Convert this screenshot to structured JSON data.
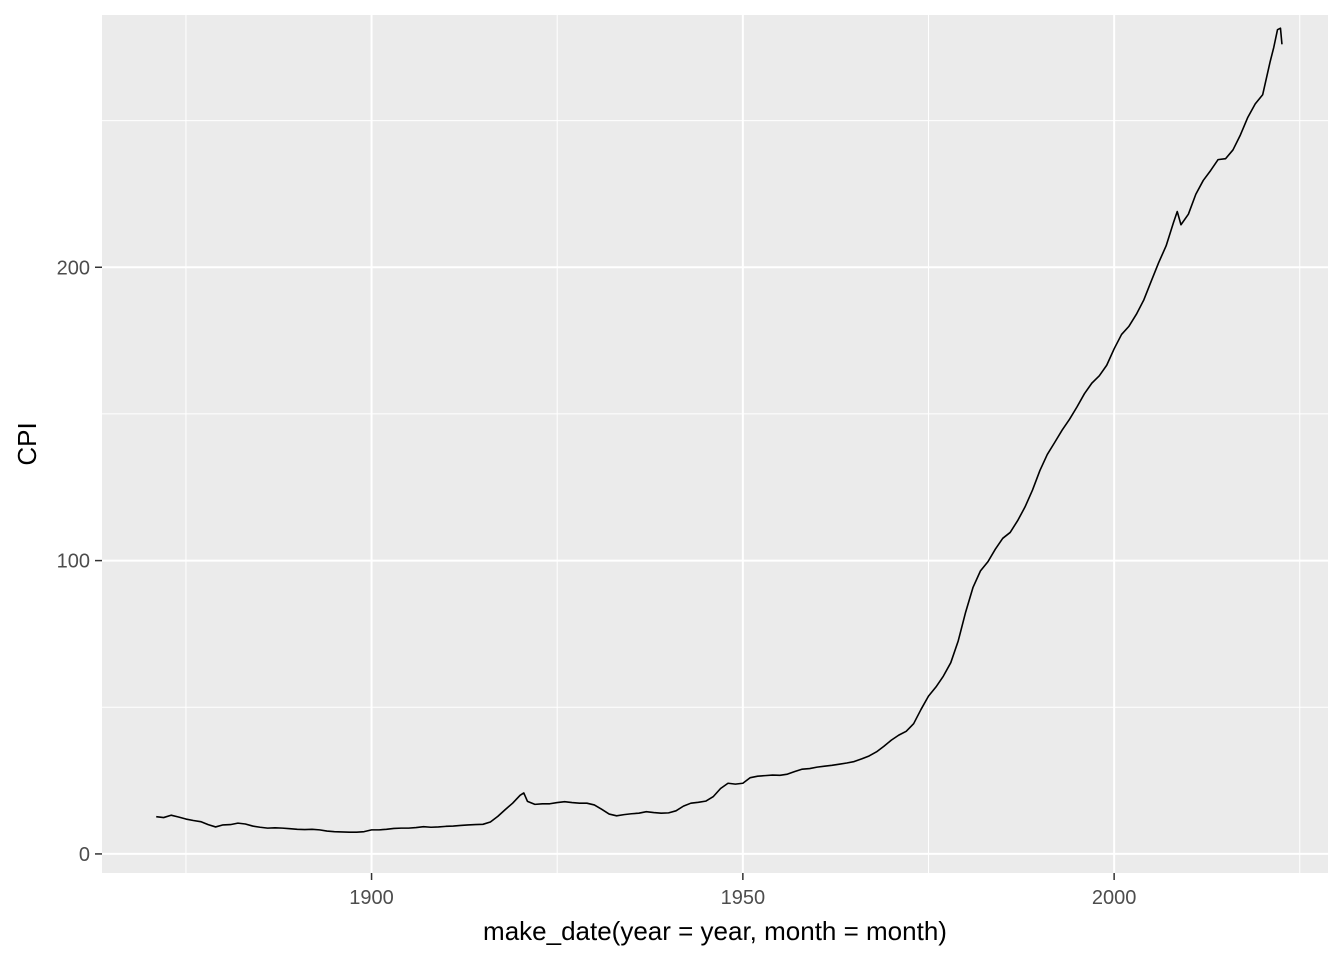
{
  "chart_data": {
    "type": "line",
    "title": "",
    "xlabel": "make_date(year = year, month = month)",
    "ylabel": "CPI",
    "x_unit": "year",
    "xlim": [
      1863.7,
      2028.8
    ],
    "ylim": [
      -6.5,
      286.0
    ],
    "x_ticks": [
      1900,
      1950,
      2000
    ],
    "x_tick_labels": [
      "1900",
      "1950",
      "2000"
    ],
    "x_minor_ticks": [
      1875,
      1925,
      1975,
      2025
    ],
    "y_ticks": [
      0,
      100,
      200
    ],
    "y_tick_labels": [
      "0",
      "100",
      "200"
    ],
    "y_minor_ticks": [
      50,
      150,
      250
    ],
    "grid": true,
    "legend": "none",
    "colors": {
      "panel": "#ebebeb",
      "grid": "#ffffff",
      "line": "#000000"
    },
    "series": [
      {
        "x": [
          1871.0,
          1872.0,
          1873.0,
          1874.0,
          1875.0,
          1876.0,
          1877.0,
          1878.0,
          1879.0,
          1880.0,
          1881.0,
          1882.0,
          1883.0,
          1884.0,
          1885.0,
          1886.0,
          1887.0,
          1888.0,
          1889.0,
          1890.0,
          1891.0,
          1892.0,
          1893.0,
          1894.0,
          1895.0,
          1896.0,
          1897.0,
          1898.0,
          1899.0,
          1900.0,
          1901.0,
          1902.0,
          1903.0,
          1904.0,
          1905.0,
          1906.0,
          1907.0,
          1908.0,
          1909.0,
          1910.0,
          1911.0,
          1912.0,
          1913.0,
          1914.0,
          1915.0,
          1916.0,
          1917.0,
          1918.0,
          1919.0,
          1920.0,
          1920.5,
          1921.0,
          1922.0,
          1923.0,
          1924.0,
          1925.0,
          1926.0,
          1927.0,
          1928.0,
          1929.0,
          1930.0,
          1931.0,
          1932.0,
          1933.0,
          1934.0,
          1935.0,
          1936.0,
          1937.0,
          1938.0,
          1939.0,
          1940.0,
          1941.0,
          1942.0,
          1943.0,
          1944.0,
          1945.0,
          1946.0,
          1947.0,
          1948.0,
          1949.0,
          1950.0,
          1951.0,
          1952.0,
          1953.0,
          1954.0,
          1955.0,
          1956.0,
          1957.0,
          1958.0,
          1959.0,
          1960.0,
          1961.0,
          1962.0,
          1963.0,
          1964.0,
          1965.0,
          1966.0,
          1967.0,
          1968.0,
          1969.0,
          1970.0,
          1971.0,
          1972.0,
          1973.0,
          1974.0,
          1975.0,
          1976.0,
          1977.0,
          1978.0,
          1979.0,
          1980.0,
          1981.0,
          1982.0,
          1983.0,
          1984.0,
          1985.0,
          1986.0,
          1987.0,
          1988.0,
          1989.0,
          1990.0,
          1991.0,
          1992.0,
          1993.0,
          1994.0,
          1995.0,
          1996.0,
          1997.0,
          1998.0,
          1999.0,
          2000.0,
          2001.0,
          2002.0,
          2003.0,
          2004.0,
          2005.0,
          2006.0,
          2007.0,
          2008.0,
          2008.5,
          2009.0,
          2010.0,
          2011.0,
          2012.0,
          2013.0,
          2014.0,
          2015.0,
          2016.0,
          2017.0,
          2018.0,
          2019.0,
          2020.0,
          2021.0,
          2021.5,
          2022.0,
          2022.4,
          2022.6
        ],
        "y": [
          12.7,
          12.4,
          13.2,
          12.6,
          11.9,
          11.4,
          11.0,
          10.0,
          9.2,
          9.9,
          10.0,
          10.5,
          10.2,
          9.5,
          9.1,
          8.8,
          8.9,
          8.8,
          8.6,
          8.4,
          8.3,
          8.4,
          8.2,
          7.8,
          7.6,
          7.5,
          7.4,
          7.4,
          7.6,
          8.2,
          8.2,
          8.4,
          8.7,
          8.8,
          8.8,
          9.0,
          9.3,
          9.1,
          9.2,
          9.4,
          9.5,
          9.7,
          9.9,
          10.0,
          10.1,
          10.9,
          12.8,
          15.1,
          17.3,
          20.0,
          20.8,
          17.9,
          16.9,
          17.1,
          17.1,
          17.5,
          17.8,
          17.5,
          17.3,
          17.3,
          16.7,
          15.2,
          13.6,
          13.0,
          13.4,
          13.7,
          13.9,
          14.4,
          14.1,
          13.9,
          14.0,
          14.7,
          16.3,
          17.3,
          17.6,
          18.0,
          19.5,
          22.3,
          24.1,
          23.8,
          24.1,
          26.0,
          26.5,
          26.7,
          26.9,
          26.8,
          27.2,
          28.1,
          28.9,
          29.1,
          29.6,
          29.9,
          30.2,
          30.6,
          31.0,
          31.5,
          32.4,
          33.4,
          34.8,
          36.7,
          38.8,
          40.5,
          41.8,
          44.4,
          49.3,
          53.8,
          56.9,
          60.6,
          65.2,
          72.6,
          82.4,
          90.9,
          96.5,
          99.6,
          103.9,
          107.6,
          109.6,
          113.6,
          118.3,
          124.0,
          130.7,
          136.2,
          140.3,
          144.5,
          148.2,
          152.4,
          156.9,
          160.5,
          163.0,
          166.6,
          172.2,
          177.1,
          179.9,
          184.0,
          188.9,
          195.3,
          201.6,
          207.3,
          215.3,
          219.0,
          214.5,
          218.1,
          224.9,
          229.6,
          233.0,
          236.7,
          237.0,
          240.0,
          245.1,
          251.1,
          255.7,
          258.8,
          270.0,
          275.0,
          281.0,
          281.5,
          276.0
        ]
      }
    ]
  }
}
